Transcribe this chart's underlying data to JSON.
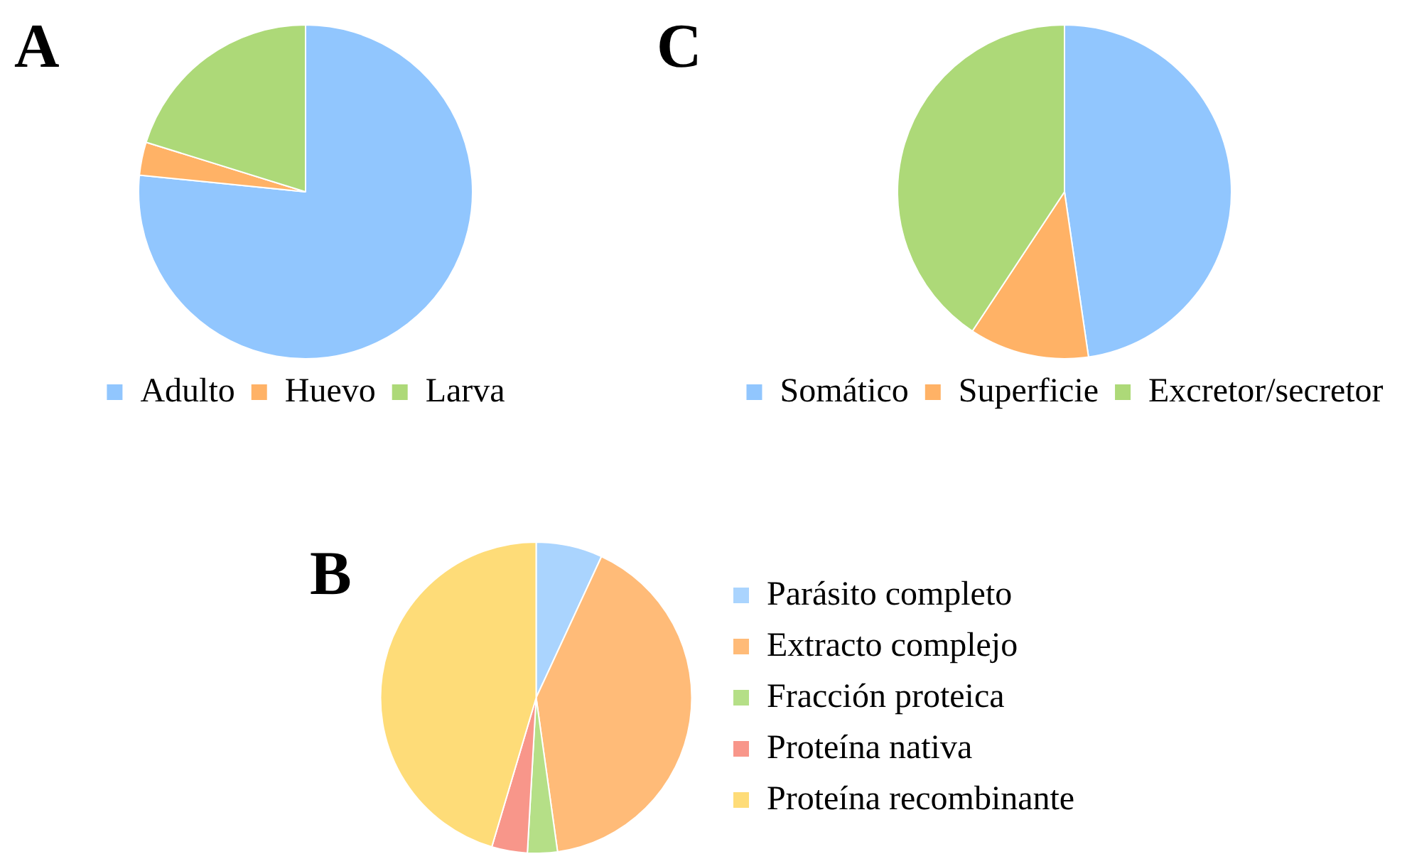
{
  "chart_data": [
    {
      "type": "pie",
      "title": "A",
      "categories": [
        "Adulto",
        "Huevo",
        "Larva"
      ],
      "values": [
        76.6,
        3.2,
        20.2
      ],
      "colors": [
        "#91c6fe",
        "#ffb266",
        "#add978"
      ],
      "legend": "bottom"
    },
    {
      "type": "pie",
      "title": "C",
      "categories": [
        "Somático",
        "Superficie",
        "Excretor/secretor"
      ],
      "values": [
        47.7,
        11.6,
        40.7
      ],
      "colors": [
        "#91c6fe",
        "#ffb266",
        "#add978"
      ],
      "legend": "bottom"
    },
    {
      "type": "pie",
      "title": "B",
      "categories": [
        "Parásito completo",
        "Extracto complejo",
        "Fracción proteica",
        "Proteína nativa",
        "Proteína recombinante"
      ],
      "values": [
        6.9,
        40.9,
        3.1,
        3.7,
        45.4
      ],
      "colors": [
        "#aad4fe",
        "#ffbb78",
        "#b5df87",
        "#f8968a",
        "#fedc78"
      ],
      "legend": "right"
    }
  ]
}
